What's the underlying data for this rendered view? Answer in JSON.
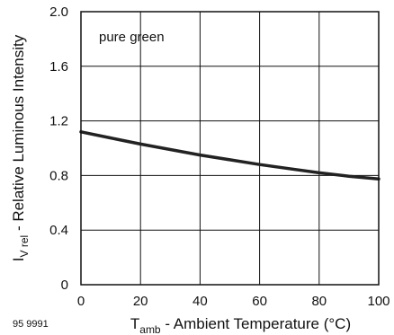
{
  "chart_data": {
    "type": "line",
    "figure_id": "95 9991",
    "annotation": "pure green",
    "xlabel": {
      "main": "T",
      "sub": "amb",
      "rest": " - Ambient Temperature (°C)"
    },
    "ylabel": {
      "main": "I",
      "sub": "V rel",
      "rest": " - Relative Luminous Intensity"
    },
    "xlim": [
      0,
      100
    ],
    "ylim": [
      0,
      2.0
    ],
    "xticks": [
      0,
      20,
      40,
      60,
      80,
      100
    ],
    "xtick_labels": [
      "0",
      "20",
      "40",
      "60",
      "80",
      "100"
    ],
    "yticks": [
      0,
      0.4,
      0.8,
      1.2,
      1.6,
      2.0
    ],
    "ytick_labels": [
      "0",
      "0.4",
      "0.8",
      "1.2",
      "1.6",
      "2.0"
    ],
    "grid": true,
    "series": [
      {
        "x": [
          0,
          10,
          20,
          30,
          40,
          50,
          60,
          70,
          80,
          90,
          100
        ],
        "y": [
          1.12,
          1.075,
          1.03,
          0.99,
          0.95,
          0.915,
          0.88,
          0.85,
          0.82,
          0.795,
          0.775
        ],
        "color": "#222222"
      }
    ]
  }
}
